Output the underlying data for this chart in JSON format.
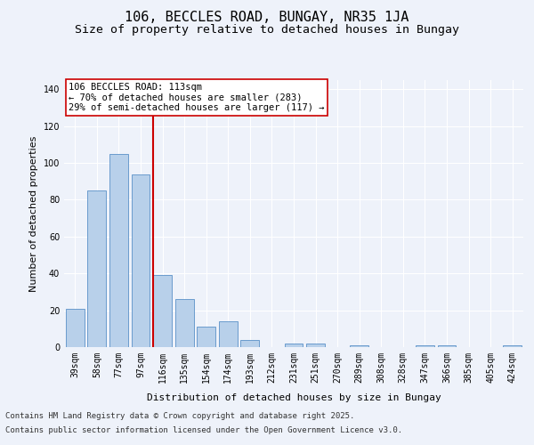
{
  "title": "106, BECCLES ROAD, BUNGAY, NR35 1JA",
  "subtitle": "Size of property relative to detached houses in Bungay",
  "xlabel": "Distribution of detached houses by size in Bungay",
  "ylabel": "Number of detached properties",
  "categories": [
    "39sqm",
    "58sqm",
    "77sqm",
    "97sqm",
    "116sqm",
    "135sqm",
    "154sqm",
    "174sqm",
    "193sqm",
    "212sqm",
    "231sqm",
    "251sqm",
    "270sqm",
    "289sqm",
    "308sqm",
    "328sqm",
    "347sqm",
    "366sqm",
    "385sqm",
    "405sqm",
    "424sqm"
  ],
  "values": [
    21,
    85,
    105,
    94,
    39,
    26,
    11,
    14,
    4,
    0,
    2,
    2,
    0,
    1,
    0,
    0,
    1,
    1,
    0,
    0,
    1
  ],
  "bar_color": "#b8d0ea",
  "bar_edge_color": "#5a90c8",
  "background_color": "#eef2fa",
  "vline_color": "#cc0000",
  "annotation_title": "106 BECCLES ROAD: 113sqm",
  "annotation_line1": "← 70% of detached houses are smaller (283)",
  "annotation_line2": "29% of semi-detached houses are larger (117) →",
  "annotation_box_color": "#ffffff",
  "annotation_box_edge": "#cc0000",
  "ylim": [
    0,
    145
  ],
  "yticks": [
    0,
    20,
    40,
    60,
    80,
    100,
    120,
    140
  ],
  "footer_line1": "Contains HM Land Registry data © Crown copyright and database right 2025.",
  "footer_line2": "Contains public sector information licensed under the Open Government Licence v3.0.",
  "title_fontsize": 11,
  "subtitle_fontsize": 9.5,
  "axis_label_fontsize": 8,
  "tick_fontsize": 7,
  "annotation_fontsize": 7.5,
  "footer_fontsize": 6.5
}
